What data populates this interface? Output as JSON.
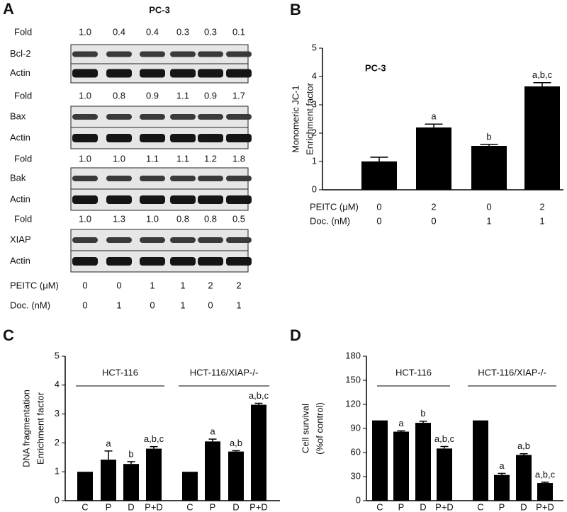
{
  "blot": {
    "panel_label": "A",
    "title": "PC-3",
    "groups": [
      {
        "fold_label": "Fold",
        "folds": [
          "1.0",
          "0.4",
          "0.4",
          "0.3",
          "0.3",
          "0.1"
        ],
        "rows": [
          "Bcl-2",
          "Actin"
        ]
      },
      {
        "fold_label": "Fold",
        "folds": [
          "1.0",
          "0.8",
          "0.9",
          "1.1",
          "0.9",
          "1.7"
        ],
        "rows": [
          "Bax",
          "Actin"
        ]
      },
      {
        "fold_label": "Fold",
        "folds": [
          "1.0",
          "1.0",
          "1.1",
          "1.1",
          "1.2",
          "1.8"
        ],
        "rows": [
          "Bak",
          "Actin"
        ]
      },
      {
        "fold_label": "Fold",
        "folds": [
          "1.0",
          "1.3",
          "1.0",
          "0.8",
          "0.8",
          "0.5"
        ],
        "rows": [
          "XIAP",
          "Actin"
        ]
      }
    ],
    "treatments": [
      {
        "name": "PEITC (μM)",
        "values": [
          0,
          0,
          1,
          1,
          2,
          2
        ]
      },
      {
        "name": "Doc. (nM)",
        "values": [
          0,
          1,
          0,
          1,
          0,
          1
        ]
      }
    ]
  },
  "chart_data": [
    {
      "type": "bar",
      "panel_label": "B",
      "annotation": "PC-3",
      "ylabel": [
        "Monomeric JC-1",
        "Enrichment factor"
      ],
      "ylim": [
        0,
        5
      ],
      "yticks": [
        0,
        1,
        2,
        3,
        4,
        5
      ],
      "color": "#000000",
      "values": [
        1.0,
        2.2,
        1.55,
        3.65
      ],
      "errors": [
        0.15,
        0.12,
        0.05,
        0.13
      ],
      "significance": [
        null,
        "a",
        "b",
        "a,b,c"
      ],
      "treatments": [
        {
          "name": "PEITC (μM)",
          "values": [
            0,
            2,
            0,
            2
          ]
        },
        {
          "name": "Doc. (nM)",
          "values": [
            0,
            0,
            1,
            1
          ]
        }
      ]
    },
    {
      "type": "grouped-bar",
      "panel_label": "C",
      "ylabel": [
        "DNA fragmentation",
        "Enrichment factor"
      ],
      "ylim": [
        0,
        5
      ],
      "yticks": [
        0,
        1,
        2,
        3,
        4,
        5
      ],
      "color": "#000000",
      "groups": [
        {
          "name": "HCT-116",
          "categories": [
            "C",
            "P",
            "D",
            "P+D"
          ],
          "values": [
            1.0,
            1.42,
            1.27,
            1.8
          ],
          "errors": [
            null,
            0.3,
            0.08,
            0.07
          ],
          "significance": [
            null,
            "a",
            "b",
            "a,b,c"
          ]
        },
        {
          "name": "HCT-116/XIAP-/-",
          "categories": [
            "C",
            "P",
            "D",
            "P+D"
          ],
          "values": [
            1.0,
            2.05,
            1.7,
            3.32
          ],
          "errors": [
            null,
            0.08,
            0.03,
            0.05
          ],
          "significance": [
            null,
            "a",
            "a,b",
            "a,b,c"
          ]
        }
      ]
    },
    {
      "type": "grouped-bar",
      "panel_label": "D",
      "ylabel": [
        "Cell survival",
        "(%of control)"
      ],
      "ylim": [
        0,
        180
      ],
      "yticks": [
        0,
        30,
        60,
        90,
        120,
        150,
        180
      ],
      "color": "#000000",
      "groups": [
        {
          "name": "HCT-116",
          "categories": [
            "C",
            "P",
            "D",
            "P+D"
          ],
          "values": [
            100,
            86,
            97,
            65
          ],
          "errors": [
            null,
            1,
            2,
            2.5
          ],
          "significance": [
            null,
            "a",
            "b",
            "a,b,c"
          ]
        },
        {
          "name": "HCT-116/XIAP-/-",
          "categories": [
            "C",
            "P",
            "D",
            "P+D"
          ],
          "values": [
            100,
            32,
            57,
            22
          ],
          "errors": [
            null,
            2,
            1.5,
            1
          ],
          "significance": [
            null,
            "a",
            "a,b",
            "a,b,c"
          ]
        }
      ]
    }
  ]
}
